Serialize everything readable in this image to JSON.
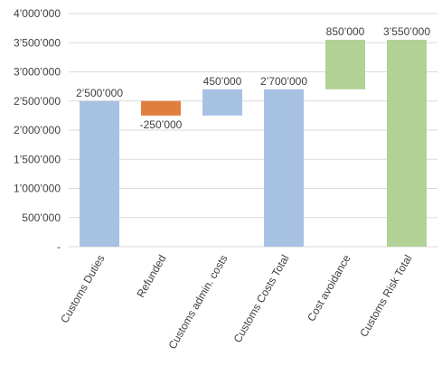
{
  "chart_data": {
    "type": "bar",
    "subtype": "waterfall",
    "categories": [
      "Customs Duties",
      "Refunded",
      "Customs admin. costs",
      "Customs Costs Total",
      "Cost avoidance",
      "Customs Risk Total"
    ],
    "bars": [
      {
        "category": "Customs Duties",
        "start": 0,
        "end": 2500000,
        "label": "2’500’000",
        "color": "#a7c1e3"
      },
      {
        "category": "Refunded",
        "start": 2250000,
        "end": 2500000,
        "label": "-250’000",
        "color": "#e07f3d"
      },
      {
        "category": "Customs admin. costs",
        "start": 2250000,
        "end": 2700000,
        "label": "450’000",
        "color": "#a7c1e3"
      },
      {
        "category": "Customs Costs Total",
        "start": 0,
        "end": 2700000,
        "label": "2’700’000",
        "color": "#a7c1e3"
      },
      {
        "category": "Cost avoidance",
        "start": 2700000,
        "end": 3550000,
        "label": "850’000",
        "color": "#b2d196"
      },
      {
        "category": "Customs Risk Total",
        "start": 0,
        "end": 3550000,
        "label": "3’550’000",
        "color": "#b2d196"
      }
    ],
    "title": "",
    "xlabel": "",
    "ylabel": "",
    "ylim": [
      0,
      4000000
    ],
    "yticks": [
      0,
      500000,
      1000000,
      1500000,
      2000000,
      2500000,
      3000000,
      3500000,
      4000000
    ],
    "ytick_labels": [
      "-",
      "500’000",
      "1’000’000",
      "1’500’000",
      "2’000’000",
      "2’500’000",
      "3’000’000",
      "3’500’000",
      "4’000’000"
    ],
    "grid": true,
    "legend": "none",
    "gridline_color": "#d9d9d9"
  }
}
